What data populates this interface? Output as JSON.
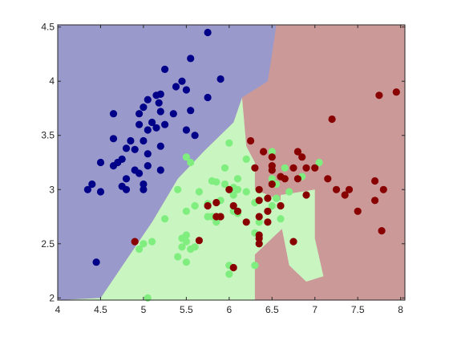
{
  "chart_data": {
    "type": "scatter",
    "title": "",
    "xlabel": "",
    "ylabel": "",
    "xlim": [
      4,
      8.05
    ],
    "ylim": [
      1.98,
      4.52
    ],
    "x_ticks": [
      4,
      4.5,
      5,
      5.5,
      6,
      6.5,
      7,
      7.5,
      8
    ],
    "x_tick_labels": [
      "4",
      "4.5",
      "5",
      "5.5",
      "6",
      "6.5",
      "7",
      "7.5",
      "8"
    ],
    "y_ticks": [
      2,
      2.5,
      3,
      3.5,
      4,
      4.5
    ],
    "y_tick_labels": [
      "2",
      "2.5",
      "3",
      "3.5",
      "4",
      "4.5"
    ],
    "grid": false,
    "legend": "none",
    "colors": {
      "region_class_0": "#9999cc",
      "region_class_1": "#c8f5c0",
      "region_class_2": "#cc9999",
      "point_class_0": "#000088",
      "point_class_1": "#7fee7f",
      "point_class_2": "#880000",
      "axis": "#262626"
    },
    "decision_regions": {
      "class_0_boundary_low_y": [
        4.5,
        2.0
      ],
      "class_0_boundary_curve": [
        [
          4.5,
          2.0
        ],
        [
          4.8,
          2.35
        ],
        [
          5.1,
          2.7
        ],
        [
          5.4,
          3.1
        ],
        [
          5.7,
          3.35
        ],
        [
          6.05,
          3.62
        ],
        [
          6.15,
          3.85
        ],
        [
          6.45,
          4.0
        ],
        [
          6.5,
          4.25
        ],
        [
          6.55,
          4.52
        ]
      ],
      "class_1_class_2_boundary": [
        [
          6.15,
          3.85
        ],
        [
          6.2,
          3.4
        ],
        [
          6.3,
          3.25
        ],
        [
          6.3,
          3.0
        ],
        [
          6.6,
          2.9
        ],
        [
          6.7,
          2.7
        ],
        [
          6.5,
          2.55
        ],
        [
          6.3,
          2.4
        ],
        [
          6.3,
          2.2
        ],
        [
          6.3,
          1.98
        ]
      ],
      "class_1_tongue": [
        [
          6.6,
          2.95
        ],
        [
          7.0,
          3.0
        ],
        [
          7.0,
          2.55
        ],
        [
          7.1,
          2.2
        ],
        [
          6.9,
          2.15
        ],
        [
          6.7,
          2.3
        ],
        [
          6.6,
          2.7
        ]
      ]
    },
    "series": [
      {
        "class": 0,
        "points": [
          [
            5.75,
            4.45
          ],
          [
            5.55,
            4.21
          ],
          [
            5.25,
            4.11
          ],
          [
            5.45,
            4.0
          ],
          [
            5.9,
            4.02
          ],
          [
            5.38,
            3.95
          ],
          [
            5.5,
            3.92
          ],
          [
            5.2,
            3.88
          ],
          [
            5.15,
            3.87
          ],
          [
            5.05,
            3.83
          ],
          [
            5.18,
            3.8
          ],
          [
            5.75,
            3.85
          ],
          [
            5.0,
            3.76
          ],
          [
            4.95,
            3.7
          ],
          [
            4.65,
            3.7
          ],
          [
            5.2,
            3.72
          ],
          [
            5.35,
            3.7
          ],
          [
            5.55,
            3.73
          ],
          [
            5.1,
            3.62
          ],
          [
            5.25,
            3.6
          ],
          [
            4.95,
            3.6
          ],
          [
            5.15,
            3.57
          ],
          [
            5.05,
            3.55
          ],
          [
            5.5,
            3.55
          ],
          [
            5.6,
            3.5
          ],
          [
            4.65,
            3.47
          ],
          [
            4.85,
            3.45
          ],
          [
            5.0,
            3.45
          ],
          [
            5.2,
            3.4
          ],
          [
            4.8,
            3.38
          ],
          [
            4.9,
            3.37
          ],
          [
            5.05,
            3.33
          ],
          [
            4.75,
            3.28
          ],
          [
            4.5,
            3.25
          ],
          [
            4.7,
            3.25
          ],
          [
            4.65,
            3.22
          ],
          [
            5.05,
            3.22
          ],
          [
            4.9,
            3.18
          ],
          [
            5.2,
            3.18
          ],
          [
            4.95,
            3.15
          ],
          [
            4.8,
            3.1
          ],
          [
            5.0,
            3.05
          ],
          [
            4.75,
            3.03
          ],
          [
            4.4,
            3.05
          ],
          [
            4.35,
            3.0
          ],
          [
            4.5,
            2.98
          ],
          [
            4.8,
            3.0
          ],
          [
            5.0,
            3.0
          ],
          [
            4.45,
            2.33
          ]
        ]
      },
      {
        "class": 1,
        "points": [
          [
            6.0,
            3.43
          ],
          [
            6.5,
            3.35
          ],
          [
            6.2,
            3.28
          ],
          [
            5.5,
            3.3
          ],
          [
            5.55,
            3.25
          ],
          [
            5.95,
            3.2
          ],
          [
            6.1,
            3.1
          ],
          [
            6.5,
            3.1
          ],
          [
            6.85,
            3.12
          ],
          [
            7.05,
            3.25
          ],
          [
            6.65,
            3.2
          ],
          [
            5.8,
            3.08
          ],
          [
            5.85,
            3.07
          ],
          [
            5.95,
            3.05
          ],
          [
            6.1,
            3.0
          ],
          [
            6.05,
            3.02
          ],
          [
            5.4,
            3.0
          ],
          [
            5.65,
            2.98
          ],
          [
            6.05,
            2.95
          ],
          [
            6.2,
            2.98
          ],
          [
            6.35,
            3.0
          ],
          [
            6.55,
            3.05
          ],
          [
            6.7,
            2.98
          ],
          [
            6.55,
            2.92
          ],
          [
            5.9,
            2.9
          ],
          [
            5.75,
            2.87
          ],
          [
            5.6,
            2.85
          ],
          [
            6.3,
            2.88
          ],
          [
            6.5,
            2.85
          ],
          [
            5.5,
            2.8
          ],
          [
            5.75,
            2.75
          ],
          [
            6.05,
            2.8
          ],
          [
            6.1,
            2.78
          ],
          [
            5.8,
            2.75
          ],
          [
            5.85,
            2.7
          ],
          [
            6.35,
            2.7
          ],
          [
            5.25,
            2.73
          ],
          [
            6.6,
            2.73
          ],
          [
            6.3,
            2.6
          ],
          [
            5.5,
            2.58
          ],
          [
            5.5,
            2.52
          ],
          [
            5.45,
            2.55
          ],
          [
            5.1,
            2.52
          ],
          [
            5.45,
            2.47
          ],
          [
            5.6,
            2.47
          ],
          [
            5.55,
            2.45
          ],
          [
            6.35,
            2.5
          ],
          [
            5.0,
            2.5
          ],
          [
            5.4,
            2.38
          ],
          [
            5.5,
            2.33
          ],
          [
            4.95,
            2.45
          ],
          [
            6.3,
            2.3
          ],
          [
            6.0,
            2.3
          ],
          [
            6.0,
            2.22
          ],
          [
            5.05,
            2.0
          ]
        ]
      },
      {
        "class": 2,
        "points": [
          [
            7.95,
            3.9
          ],
          [
            7.75,
            3.87
          ],
          [
            7.2,
            3.65
          ],
          [
            6.25,
            3.45
          ],
          [
            6.8,
            3.35
          ],
          [
            6.4,
            3.35
          ],
          [
            6.85,
            3.3
          ],
          [
            6.5,
            3.3
          ],
          [
            6.3,
            3.2
          ],
          [
            6.5,
            3.22
          ],
          [
            6.75,
            3.2
          ],
          [
            6.9,
            3.2
          ],
          [
            7.0,
            3.2
          ],
          [
            6.5,
            3.18
          ],
          [
            6.6,
            3.12
          ],
          [
            7.15,
            3.1
          ],
          [
            6.8,
            3.1
          ],
          [
            6.65,
            3.1
          ],
          [
            7.7,
            3.08
          ],
          [
            6.5,
            3.05
          ],
          [
            6.35,
            3.0
          ],
          [
            7.25,
            3.0
          ],
          [
            7.4,
            3.0
          ],
          [
            7.8,
            3.0
          ],
          [
            6.0,
            3.0
          ],
          [
            6.9,
            2.95
          ],
          [
            7.35,
            2.95
          ],
          [
            6.45,
            2.92
          ],
          [
            6.35,
            2.9
          ],
          [
            7.7,
            2.9
          ],
          [
            5.85,
            2.88
          ],
          [
            6.05,
            2.85
          ],
          [
            6.6,
            2.85
          ],
          [
            5.75,
            2.85
          ],
          [
            7.5,
            2.8
          ],
          [
            6.1,
            2.8
          ],
          [
            6.45,
            2.8
          ],
          [
            6.35,
            2.75
          ],
          [
            5.85,
            2.75
          ],
          [
            5.9,
            2.75
          ],
          [
            6.2,
            2.7
          ],
          [
            6.45,
            2.7
          ],
          [
            7.78,
            2.62
          ],
          [
            6.35,
            2.58
          ],
          [
            6.35,
            2.55
          ],
          [
            5.65,
            2.53
          ],
          [
            6.75,
            2.52
          ],
          [
            4.9,
            2.52
          ],
          [
            6.35,
            2.5
          ],
          [
            6.05,
            2.28
          ]
        ]
      }
    ]
  }
}
